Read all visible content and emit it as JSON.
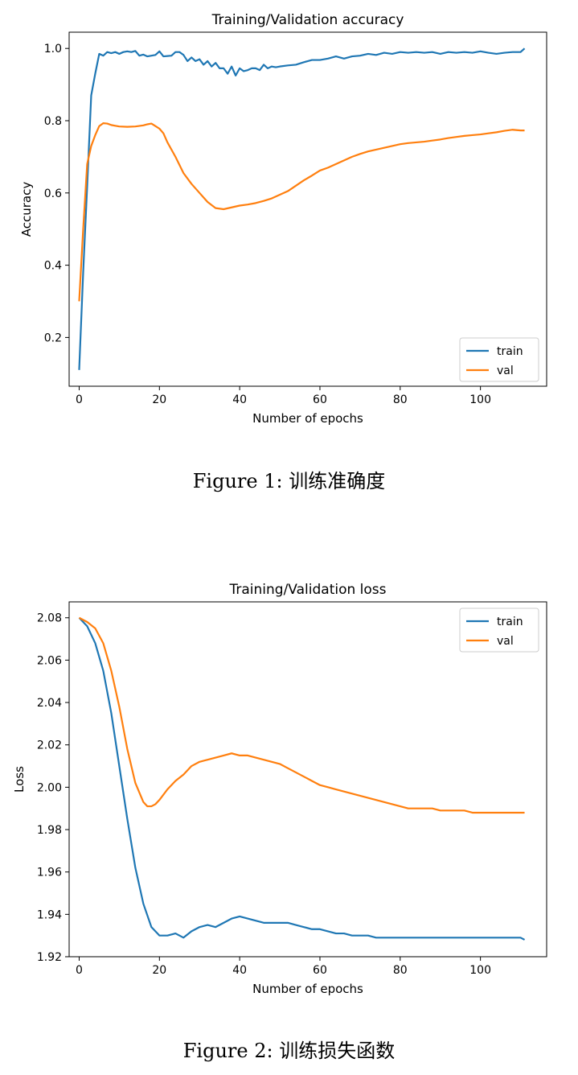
{
  "figures": [
    {
      "caption": "Figure 1: 训练准确度"
    },
    {
      "caption": "Figure 2: 训练损失函数"
    }
  ],
  "chart_data": [
    {
      "type": "line",
      "title": "Training/Validation accuracy",
      "xlabel": "Number of epochs",
      "ylabel": "Accuracy",
      "xlim": [
        -2.5,
        116.5
      ],
      "ylim": [
        0.065,
        1.045
      ],
      "xticks": [
        0,
        20,
        40,
        60,
        80,
        100
      ],
      "yticks": [
        0.2,
        0.4,
        0.6,
        0.8,
        1.0
      ],
      "xtick_labels": [
        "0",
        "20",
        "40",
        "60",
        "80",
        "100"
      ],
      "ytick_labels": [
        "0.2",
        "0.4",
        "0.6",
        "0.8",
        "1.0"
      ],
      "grid": false,
      "legend": "lower-right",
      "series": [
        {
          "name": "train",
          "color": "#1f77b4",
          "x": [
            0,
            1,
            2,
            3,
            4,
            5,
            6,
            7,
            8,
            9,
            10,
            11,
            12,
            13,
            14,
            15,
            16,
            17,
            18,
            19,
            20,
            21,
            22,
            23,
            24,
            25,
            26,
            27,
            28,
            29,
            30,
            31,
            32,
            33,
            34,
            35,
            36,
            37,
            38,
            39,
            40,
            41,
            42,
            43,
            44,
            45,
            46,
            47,
            48,
            49,
            50,
            52,
            54,
            56,
            58,
            60,
            62,
            64,
            66,
            68,
            70,
            72,
            74,
            76,
            78,
            80,
            82,
            84,
            86,
            88,
            90,
            92,
            94,
            96,
            98,
            100,
            102,
            104,
            106,
            108,
            110,
            111
          ],
          "y": [
            0.11,
            0.38,
            0.62,
            0.87,
            0.93,
            0.985,
            0.98,
            0.99,
            0.987,
            0.99,
            0.985,
            0.99,
            0.992,
            0.99,
            0.993,
            0.98,
            0.983,
            0.978,
            0.98,
            0.982,
            0.992,
            0.978,
            0.979,
            0.98,
            0.99,
            0.99,
            0.982,
            0.965,
            0.975,
            0.965,
            0.97,
            0.955,
            0.965,
            0.95,
            0.96,
            0.945,
            0.945,
            0.93,
            0.95,
            0.925,
            0.945,
            0.937,
            0.94,
            0.945,
            0.945,
            0.94,
            0.955,
            0.945,
            0.95,
            0.948,
            0.95,
            0.953,
            0.955,
            0.962,
            0.968,
            0.968,
            0.972,
            0.978,
            0.972,
            0.978,
            0.98,
            0.985,
            0.982,
            0.988,
            0.985,
            0.99,
            0.988,
            0.99,
            0.988,
            0.99,
            0.985,
            0.99,
            0.988,
            0.99,
            0.988,
            0.992,
            0.988,
            0.985,
            0.988,
            0.99,
            0.99,
            1.0
          ]
        },
        {
          "name": "val",
          "color": "#ff7f0e",
          "x": [
            0,
            1,
            2,
            3,
            4,
            5,
            6,
            7,
            8,
            9,
            10,
            12,
            14,
            16,
            17,
            18,
            19,
            20,
            21,
            22,
            24,
            26,
            28,
            30,
            32,
            34,
            36,
            38,
            40,
            42,
            44,
            46,
            48,
            50,
            52,
            54,
            56,
            58,
            60,
            62,
            64,
            66,
            68,
            70,
            72,
            74,
            76,
            78,
            80,
            82,
            84,
            86,
            88,
            90,
            92,
            94,
            96,
            98,
            100,
            102,
            104,
            106,
            108,
            110,
            111
          ],
          "y": [
            0.3,
            0.5,
            0.68,
            0.73,
            0.76,
            0.785,
            0.793,
            0.792,
            0.788,
            0.786,
            0.784,
            0.783,
            0.784,
            0.787,
            0.79,
            0.792,
            0.785,
            0.778,
            0.765,
            0.74,
            0.7,
            0.655,
            0.625,
            0.6,
            0.575,
            0.558,
            0.555,
            0.56,
            0.565,
            0.568,
            0.572,
            0.578,
            0.585,
            0.595,
            0.605,
            0.62,
            0.635,
            0.648,
            0.662,
            0.67,
            0.68,
            0.69,
            0.7,
            0.708,
            0.715,
            0.72,
            0.725,
            0.73,
            0.735,
            0.738,
            0.74,
            0.742,
            0.745,
            0.748,
            0.752,
            0.755,
            0.758,
            0.76,
            0.762,
            0.765,
            0.768,
            0.772,
            0.775,
            0.773,
            0.773
          ]
        }
      ]
    },
    {
      "type": "line",
      "title": "Training/Validation loss",
      "xlabel": "Number of epochs",
      "ylabel": "Loss",
      "xlim": [
        -2.5,
        116.5
      ],
      "ylim": [
        1.92,
        2.0875
      ],
      "xticks": [
        0,
        20,
        40,
        60,
        80,
        100
      ],
      "yticks": [
        1.92,
        1.94,
        1.96,
        1.98,
        2.0,
        2.02,
        2.04,
        2.06,
        2.08
      ],
      "xtick_labels": [
        "0",
        "20",
        "40",
        "60",
        "80",
        "100"
      ],
      "ytick_labels": [
        "1.92",
        "1.94",
        "1.96",
        "1.98",
        "2.00",
        "2.02",
        "2.04",
        "2.06",
        "2.08"
      ],
      "grid": false,
      "legend": "upper-right",
      "series": [
        {
          "name": "train",
          "color": "#1f77b4",
          "x": [
            0,
            2,
            4,
            6,
            8,
            10,
            12,
            14,
            16,
            18,
            20,
            22,
            24,
            26,
            28,
            30,
            32,
            34,
            36,
            38,
            40,
            42,
            44,
            46,
            48,
            50,
            52,
            54,
            56,
            58,
            60,
            62,
            64,
            66,
            68,
            70,
            72,
            74,
            76,
            78,
            80,
            82,
            84,
            86,
            88,
            90,
            92,
            94,
            96,
            98,
            100,
            102,
            104,
            106,
            108,
            110,
            111
          ],
          "y": [
            2.08,
            2.076,
            2.068,
            2.055,
            2.035,
            2.01,
            1.985,
            1.962,
            1.945,
            1.934,
            1.93,
            1.93,
            1.931,
            1.929,
            1.932,
            1.934,
            1.935,
            1.934,
            1.936,
            1.938,
            1.939,
            1.938,
            1.937,
            1.936,
            1.936,
            1.936,
            1.936,
            1.935,
            1.934,
            1.933,
            1.933,
            1.932,
            1.931,
            1.931,
            1.93,
            1.93,
            1.93,
            1.929,
            1.929,
            1.929,
            1.929,
            1.929,
            1.929,
            1.929,
            1.929,
            1.929,
            1.929,
            1.929,
            1.929,
            1.929,
            1.929,
            1.929,
            1.929,
            1.929,
            1.929,
            1.929,
            1.928
          ]
        },
        {
          "name": "val",
          "color": "#ff7f0e",
          "x": [
            0,
            2,
            4,
            6,
            8,
            10,
            12,
            14,
            16,
            17,
            18,
            19,
            20,
            22,
            24,
            26,
            28,
            30,
            32,
            34,
            36,
            38,
            40,
            42,
            44,
            46,
            48,
            50,
            52,
            54,
            56,
            58,
            60,
            62,
            64,
            66,
            68,
            70,
            72,
            74,
            76,
            78,
            80,
            82,
            84,
            86,
            88,
            90,
            92,
            94,
            96,
            98,
            100,
            102,
            104,
            106,
            108,
            110,
            111
          ],
          "y": [
            2.08,
            2.078,
            2.075,
            2.068,
            2.055,
            2.038,
            2.018,
            2.002,
            1.993,
            1.991,
            1.991,
            1.992,
            1.994,
            1.999,
            2.003,
            2.006,
            2.01,
            2.012,
            2.013,
            2.014,
            2.015,
            2.016,
            2.015,
            2.015,
            2.014,
            2.013,
            2.012,
            2.011,
            2.009,
            2.007,
            2.005,
            2.003,
            2.001,
            2.0,
            1.999,
            1.998,
            1.997,
            1.996,
            1.995,
            1.994,
            1.993,
            1.992,
            1.991,
            1.99,
            1.99,
            1.99,
            1.99,
            1.989,
            1.989,
            1.989,
            1.989,
            1.988,
            1.988,
            1.988,
            1.988,
            1.988,
            1.988,
            1.988,
            1.988
          ]
        }
      ]
    }
  ]
}
